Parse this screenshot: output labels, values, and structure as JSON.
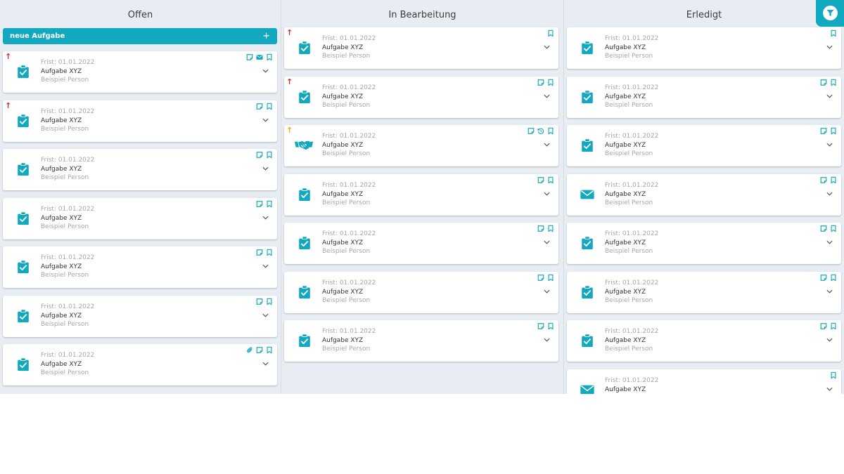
{
  "columns": [
    {
      "title": "Offen"
    },
    {
      "title": "In Bearbeitung"
    },
    {
      "title": "Erledigt"
    }
  ],
  "new_task_label": "neue Aufgabe",
  "card": {
    "deadline": "Frist: 01.01.2022",
    "title": "Aufgabe XYZ",
    "person": "Beispiel Person"
  },
  "colors": {
    "accent": "#12a9c0",
    "priority_high": "#e0262b",
    "priority_medium": "#f2a71a",
    "board_bg": "#e8edf3"
  },
  "cards": {
    "offen": [
      {
        "type": "clipboard",
        "priority": "high",
        "actions": [
          "note",
          "mail",
          "bookmark"
        ]
      },
      {
        "type": "clipboard",
        "priority": "high",
        "actions": [
          "note",
          "bookmark"
        ]
      },
      {
        "type": "clipboard",
        "priority": "",
        "actions": [
          "note",
          "bookmark"
        ]
      },
      {
        "type": "clipboard",
        "priority": "",
        "actions": [
          "note",
          "bookmark"
        ]
      },
      {
        "type": "clipboard",
        "priority": "",
        "actions": [
          "note",
          "bookmark"
        ]
      },
      {
        "type": "clipboard",
        "priority": "",
        "actions": [
          "note",
          "bookmark"
        ]
      },
      {
        "type": "clipboard",
        "priority": "",
        "actions": [
          "attachment",
          "note",
          "bookmark"
        ]
      }
    ],
    "bearbeitung": [
      {
        "type": "clipboard",
        "priority": "high",
        "actions": [
          "bookmark"
        ]
      },
      {
        "type": "clipboard",
        "priority": "high",
        "actions": [
          "note",
          "bookmark"
        ]
      },
      {
        "type": "handshake",
        "priority": "medium",
        "actions": [
          "note",
          "history",
          "bookmark"
        ]
      },
      {
        "type": "clipboard",
        "priority": "",
        "actions": [
          "note",
          "bookmark"
        ]
      },
      {
        "type": "clipboard",
        "priority": "",
        "actions": [
          "note",
          "bookmark"
        ]
      },
      {
        "type": "clipboard",
        "priority": "",
        "actions": [
          "note",
          "bookmark"
        ]
      },
      {
        "type": "clipboard",
        "priority": "",
        "actions": [
          "note",
          "bookmark"
        ]
      }
    ],
    "erledigt": [
      {
        "type": "clipboard",
        "priority": "",
        "actions": [
          "bookmark"
        ]
      },
      {
        "type": "clipboard",
        "priority": "",
        "actions": [
          "note",
          "bookmark"
        ]
      },
      {
        "type": "clipboard",
        "priority": "",
        "actions": [
          "note",
          "bookmark"
        ]
      },
      {
        "type": "mail",
        "priority": "",
        "actions": [
          "note",
          "bookmark"
        ]
      },
      {
        "type": "clipboard",
        "priority": "",
        "actions": [
          "note",
          "bookmark"
        ]
      },
      {
        "type": "clipboard",
        "priority": "",
        "actions": [
          "note",
          "bookmark"
        ]
      },
      {
        "type": "clipboard",
        "priority": "",
        "actions": [
          "note",
          "bookmark"
        ]
      },
      {
        "type": "mail",
        "priority": "",
        "actions": [
          "bookmark"
        ]
      }
    ]
  },
  "icons": {
    "filter": "filter-icon",
    "priority": "arrow-up-icon",
    "expand": "chevron-down-icon"
  }
}
